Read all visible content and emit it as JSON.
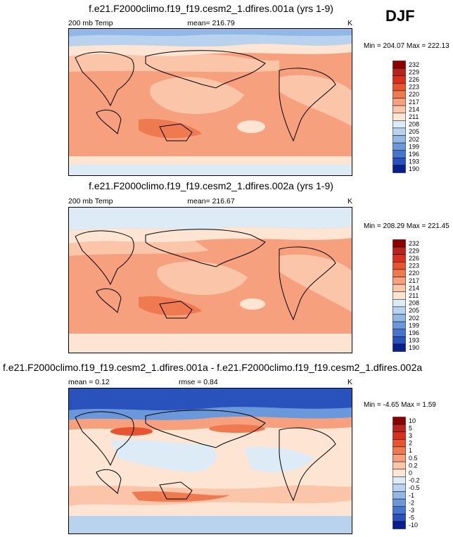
{
  "season": "DJF",
  "chart_data": [
    {
      "type": "heatmap",
      "title": "f.e21.F2000climo.f19_f19.cesm2_1.dfires.001a (yrs 1-9)",
      "left_label": "200 mb Temp",
      "center_label": "mean= 216.79",
      "right_label": "K",
      "minmax_label": "Min = 204.07 Max = 222.13",
      "stats": {
        "mean": 216.79,
        "min": 204.07,
        "max": 222.13
      },
      "colorbar": {
        "levels": [
          "232",
          "229",
          "226",
          "223",
          "220",
          "217",
          "214",
          "211",
          "208",
          "205",
          "202",
          "199",
          "196",
          "193",
          "190"
        ],
        "colors": [
          "#8b0000",
          "#b8231c",
          "#d7301f",
          "#e8542f",
          "#f07a4f",
          "#f6a07e",
          "#fbc5aa",
          "#fde4d3",
          "#ddebf7",
          "#b9d3ef",
          "#92b8e6",
          "#6b98da",
          "#4676cc",
          "#2a52bc",
          "#0a1f8f"
        ]
      }
    },
    {
      "type": "heatmap",
      "title": "f.e21.F2000climo.f19_f19.cesm2_1.dfires.002a (yrs 1-9)",
      "left_label": "200 mb Temp",
      "center_label": "mean= 216.67",
      "right_label": "K",
      "minmax_label": "Min = 208.29 Max = 221.45",
      "stats": {
        "mean": 216.67,
        "min": 208.29,
        "max": 221.45
      },
      "colorbar": {
        "levels": [
          "232",
          "229",
          "226",
          "223",
          "220",
          "217",
          "214",
          "211",
          "208",
          "205",
          "202",
          "199",
          "196",
          "193",
          "190"
        ],
        "colors": [
          "#8b0000",
          "#b8231c",
          "#d7301f",
          "#e8542f",
          "#f07a4f",
          "#f6a07e",
          "#fbc5aa",
          "#fde4d3",
          "#ddebf7",
          "#b9d3ef",
          "#92b8e6",
          "#6b98da",
          "#4676cc",
          "#2a52bc",
          "#0a1f8f"
        ]
      }
    },
    {
      "type": "heatmap",
      "title": "f.e21.F2000climo.f19_f19.cesm2_1.dfires.001a - f.e21.F2000climo.f19_f19.cesm2_1.dfires.002a",
      "left_label": "mean =   0.12",
      "center_label": "rmse =   0.84",
      "right_label": "K",
      "minmax_label": "Min =  -4.65 Max =   1.59",
      "stats": {
        "mean": 0.12,
        "rmse": 0.84,
        "min": -4.65,
        "max": 1.59
      },
      "colorbar": {
        "levels": [
          "10",
          "5",
          "3",
          "2",
          "1",
          "0.5",
          "0.2",
          "0",
          "-0.2",
          "-0.5",
          "-1",
          "-2",
          "-3",
          "-5",
          "-10"
        ],
        "colors": [
          "#8b0000",
          "#b8231c",
          "#d7301f",
          "#e8542f",
          "#f07a4f",
          "#f6a07e",
          "#fbc5aa",
          "#fde4d3",
          "#ddebf7",
          "#b9d3ef",
          "#92b8e6",
          "#6b98da",
          "#4676cc",
          "#2a52bc",
          "#0a1f8f"
        ]
      }
    }
  ]
}
